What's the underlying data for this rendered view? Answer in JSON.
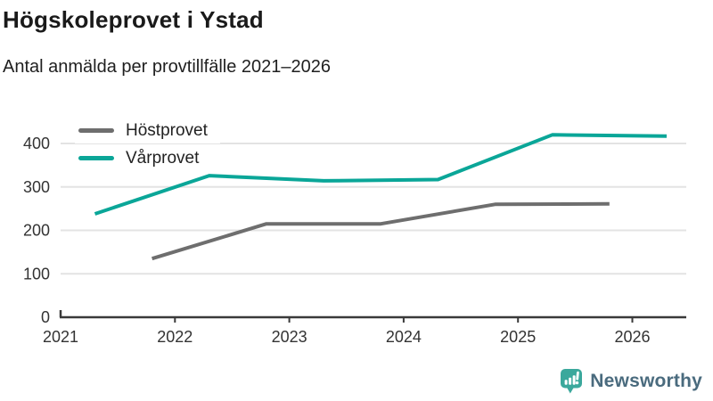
{
  "header": {
    "title": "Högskoleprovet i Ystad",
    "subtitle": "Antal anmälda per provtillfälle 2021–2026"
  },
  "footer": {
    "brand": "Newsworthy"
  },
  "colors": {
    "autumn_line": "#6e6e6e",
    "spring_line": "#0aa698",
    "grid": "#e3e3e3",
    "axis": "#3a3a3a",
    "tick_label": "#333333",
    "brand_teal": "#3ba89c",
    "brand_text": "#4a6b7e"
  },
  "chart_data": {
    "type": "line",
    "title": "Högskoleprovet i Ystad",
    "subtitle": "Antal anmälda per provtillfälle 2021–2026",
    "xlabel": "",
    "ylabel": "",
    "x_ticks": [
      2021,
      2022,
      2023,
      2024,
      2025,
      2026
    ],
    "y_ticks": [
      0,
      100,
      200,
      300,
      400
    ],
    "xlim": [
      2021,
      2026.47
    ],
    "ylim": [
      0,
      440
    ],
    "grid": "horizontal",
    "legend_position": "top-left",
    "series": [
      {
        "name": "Höstprovet",
        "color": "#6e6e6e",
        "points": [
          [
            2021.8,
            135
          ],
          [
            2022.8,
            215
          ],
          [
            2023.8,
            215
          ],
          [
            2024.8,
            260
          ],
          [
            2025.8,
            261
          ]
        ]
      },
      {
        "name": "Vårprovet",
        "color": "#0aa698",
        "points": [
          [
            2021.3,
            238
          ],
          [
            2022.3,
            326
          ],
          [
            2023.3,
            314
          ],
          [
            2024.3,
            317
          ],
          [
            2025.3,
            420
          ],
          [
            2026.3,
            417
          ]
        ]
      }
    ]
  }
}
